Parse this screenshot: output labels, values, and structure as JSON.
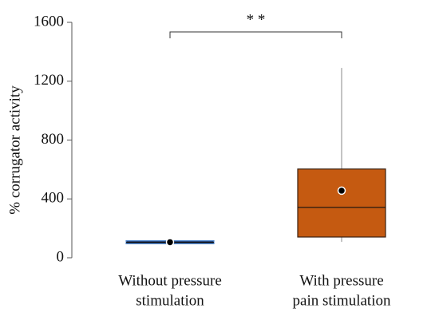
{
  "chart_data": {
    "type": "box",
    "ylabel": "% corrugator activity",
    "categories": [
      [
        "Without pressure",
        "stimulation"
      ],
      [
        "With pressure",
        "pain stimulation"
      ]
    ],
    "series": [
      {
        "color": "#1f3a6e",
        "edge": "#5b8fd0",
        "whisker_low": 92,
        "q1": 95,
        "median": 105,
        "q3": 116,
        "whisker_high": 120,
        "mean": 106
      },
      {
        "color": "#c55a11",
        "edge": "#3a2010",
        "whisker_low": 108,
        "q1": 141,
        "median": 342,
        "q3": 603,
        "whisker_high": 1290,
        "mean": 456
      }
    ],
    "ylim": [
      0,
      1600
    ],
    "yticks": [
      0,
      400,
      800,
      1200,
      1600
    ],
    "annotation": "* *"
  }
}
